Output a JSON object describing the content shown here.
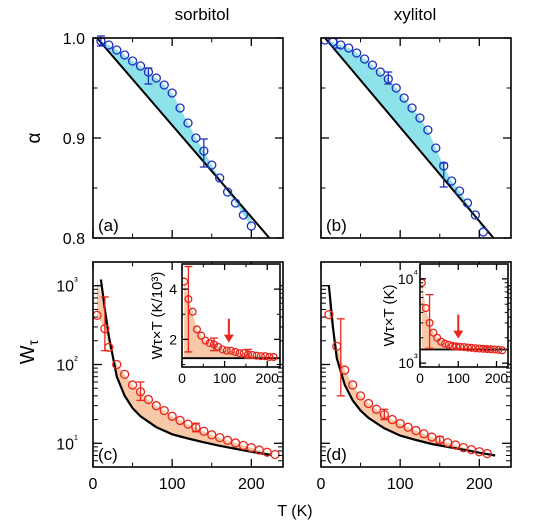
{
  "colors": {
    "open_circle_blue": "#1f2fbf",
    "open_circle_red": "#e8261c",
    "shade_alpha": "#8ee3ea",
    "shade_W": "#f7c9a8",
    "arrow": "#e8261c",
    "line": "#000000"
  },
  "chart_data": [
    {
      "id": "a",
      "type": "scatter",
      "title": "sorbitol",
      "panel_label": "(a)",
      "xlabel": "",
      "ylabel": "α",
      "xlim": [
        0,
        240
      ],
      "ylim": [
        0.8,
        1.0
      ],
      "yticks": [
        "0.8",
        "0.9",
        "1.0"
      ],
      "xticks": [],
      "grid": false,
      "series": [
        {
          "kind": "points",
          "color": "#1f2fbf",
          "x": [
            10,
            20,
            30,
            40,
            50,
            60,
            70,
            80,
            90,
            100,
            110,
            120,
            130,
            140,
            150,
            160,
            170,
            180,
            190,
            200
          ],
          "y": [
            0.997,
            0.993,
            0.988,
            0.983,
            0.977,
            0.972,
            0.966,
            0.96,
            0.953,
            0.945,
            0.93,
            0.915,
            0.9,
            0.887,
            0.873,
            0.86,
            0.846,
            0.835,
            0.823,
            0.812
          ],
          "errors": [
            {
              "x": 10,
              "y": 0.997,
              "err": 0.005
            },
            {
              "x": 70,
              "y": 0.962,
              "err": 0.008
            },
            {
              "x": 140,
              "y": 0.885,
              "err": 0.014
            }
          ]
        },
        {
          "kind": "line",
          "color": "#000000",
          "x": [
            5,
            225
          ],
          "y": [
            1.0,
            0.798
          ]
        }
      ]
    },
    {
      "id": "b",
      "type": "scatter",
      "title": "xylitol",
      "panel_label": "(b)",
      "xlabel": "",
      "ylabel": "",
      "xlim": [
        0,
        240
      ],
      "ylim": [
        0.8,
        1.0
      ],
      "yticks": [],
      "xticks": [],
      "grid": false,
      "series": [
        {
          "kind": "points",
          "color": "#1f2fbf",
          "x": [
            5,
            15,
            25,
            35,
            45,
            55,
            65,
            75,
            85,
            95,
            105,
            115,
            125,
            135,
            145,
            155,
            165,
            175,
            185,
            195,
            205
          ],
          "y": [
            0.998,
            0.996,
            0.993,
            0.99,
            0.985,
            0.979,
            0.973,
            0.966,
            0.959,
            0.95,
            0.94,
            0.93,
            0.92,
            0.908,
            0.89,
            0.872,
            0.857,
            0.847,
            0.835,
            0.823,
            0.806
          ],
          "errors": [
            {
              "x": 20,
              "y": 0.995,
              "err": 0.005
            },
            {
              "x": 85,
              "y": 0.96,
              "err": 0.006
            },
            {
              "x": 155,
              "y": 0.863,
              "err": 0.012
            }
          ]
        },
        {
          "kind": "line",
          "color": "#000000",
          "x": [
            5,
            220
          ],
          "y": [
            1.0,
            0.798
          ]
        }
      ]
    },
    {
      "id": "c",
      "type": "scatter",
      "title": "",
      "panel_label": "(c)",
      "xlabel": "",
      "ylabel": "Wτ",
      "xlim": [
        0,
        240
      ],
      "ylim": [
        5,
        2000
      ],
      "yscale": "log",
      "yticks": [
        "10¹",
        "10²",
        "10³"
      ],
      "xticks": [
        "0",
        "100",
        "200"
      ],
      "grid": false,
      "series": [
        {
          "kind": "points",
          "color": "#e8261c",
          "x": [
            5,
            15,
            20,
            30,
            40,
            50,
            60,
            70,
            80,
            90,
            100,
            110,
            120,
            130,
            140,
            150,
            160,
            170,
            180,
            190,
            200,
            210,
            220,
            230
          ],
          "y": [
            420,
            285,
            165,
            100,
            75,
            55,
            45,
            36,
            30,
            26,
            22,
            19.5,
            17.5,
            15.8,
            14.2,
            12.8,
            11.8,
            10.9,
            10.1,
            9.4,
            8.8,
            8.2,
            7.7,
            7.2
          ],
          "errors": [
            {
              "x": 15,
              "y": 300,
              "lo": 150,
              "hi": 720
            },
            {
              "x": 60,
              "y": 45,
              "lo": 35,
              "hi": 60
            },
            {
              "x": 130,
              "y": 15.8,
              "lo": 14,
              "hi": 18
            }
          ]
        },
        {
          "kind": "line",
          "color": "#000000",
          "x": [
            10,
            15,
            20,
            30,
            40,
            50,
            60,
            80,
            100,
            120,
            140,
            160,
            180,
            200,
            225
          ],
          "y": [
            1200,
            500,
            230,
            70,
            40,
            28,
            22,
            16,
            13,
            11.5,
            10.3,
            9.3,
            8.5,
            7.8,
            7.1
          ]
        }
      ],
      "inset": {
        "ylabel": "Wτ×T (K/10³)",
        "xlim": [
          0,
          230
        ],
        "ylim": [
          0.9,
          5.0
        ],
        "yticks": [
          "2",
          "4"
        ],
        "xticks": [
          "0",
          "100",
          "200"
        ],
        "arrow_x": 110,
        "points": {
          "x": [
            5,
            15,
            25,
            35,
            45,
            55,
            65,
            75,
            85,
            95,
            105,
            115,
            125,
            135,
            145,
            155,
            165,
            175,
            185,
            195,
            205,
            215
          ],
          "y": [
            4.3,
            3.6,
            3.1,
            2.4,
            2.15,
            1.95,
            1.85,
            1.8,
            1.7,
            1.6,
            1.55,
            1.55,
            1.5,
            1.45,
            1.45,
            1.4,
            1.38,
            1.35,
            1.33,
            1.33,
            1.3,
            1.3
          ],
          "errors": [
            {
              "x": 15,
              "y": 3.2,
              "lo": 1.5,
              "hi": 4.9
            },
            {
              "x": 75,
              "y": 1.8,
              "lo": 1.55,
              "hi": 2.05
            },
            {
              "x": 155,
              "y": 1.4,
              "lo": 1.25,
              "hi": 1.6
            }
          ]
        },
        "line": {
          "x": [
            0,
            230
          ],
          "y": [
            1.25,
            1.25
          ]
        }
      }
    },
    {
      "id": "d",
      "type": "scatter",
      "title": "",
      "panel_label": "(d)",
      "xlabel": "",
      "ylabel": "",
      "xlim": [
        0,
        240
      ],
      "ylim": [
        5,
        2000
      ],
      "yscale": "log",
      "yticks": [],
      "xticks": [
        "0",
        "100",
        "200"
      ],
      "grid": false,
      "series": [
        {
          "kind": "points",
          "color": "#e8261c",
          "x": [
            10,
            20,
            30,
            40,
            50,
            60,
            70,
            80,
            90,
            100,
            110,
            120,
            130,
            140,
            150,
            160,
            170,
            180,
            190,
            200,
            210
          ],
          "y": [
            430,
            170,
            85,
            55,
            40,
            32,
            27,
            23,
            20,
            17.8,
            16,
            14.5,
            13.2,
            12,
            11,
            10.2,
            9.5,
            8.8,
            8.3,
            7.8,
            7.4
          ],
          "errors": [
            {
              "x": 25,
              "y": 120,
              "lo": 40,
              "hi": 380
            },
            {
              "x": 80,
              "y": 23,
              "lo": 20,
              "hi": 27
            },
            {
              "x": 150,
              "y": 11,
              "lo": 10,
              "hi": 12.2
            }
          ]
        },
        {
          "kind": "line",
          "color": "#000000",
          "x": [
            10,
            15,
            20,
            30,
            40,
            50,
            60,
            80,
            100,
            120,
            140,
            160,
            180,
            200,
            220
          ],
          "y": [
            1000,
            300,
            120,
            55,
            35,
            26,
            21,
            15.5,
            12.5,
            11,
            9.8,
            9,
            8.3,
            7.6,
            7.0
          ]
        }
      ],
      "inset": {
        "ylabel": "Wτ×T (K)",
        "xlim": [
          0,
          230
        ],
        "ylim": [
          900,
          15000
        ],
        "yscale": "log",
        "yticks": [
          "10³",
          "10⁴"
        ],
        "xticks": [
          "0",
          "100",
          "200"
        ],
        "arrow_x": 100,
        "points": {
          "x": [
            5,
            15,
            25,
            35,
            45,
            55,
            65,
            75,
            85,
            95,
            105,
            115,
            125,
            135,
            145,
            155,
            165,
            175,
            185,
            195,
            205,
            215
          ],
          "y": [
            9000,
            4500,
            3000,
            2300,
            2000,
            1800,
            1700,
            1650,
            1600,
            1580,
            1560,
            1550,
            1530,
            1520,
            1500,
            1490,
            1480,
            1470,
            1460,
            1450,
            1440,
            1420
          ],
          "errors": [
            {
              "x": 25,
              "y": 2800,
              "lo": 1500,
              "hi": 6500
            },
            {
              "x": 95,
              "y": 1580,
              "lo": 1480,
              "hi": 1700
            },
            {
              "x": 175,
              "y": 1470,
              "lo": 1400,
              "hi": 1550
            }
          ]
        },
        "line": {
          "x": [
            0,
            230
          ],
          "y": [
            1450,
            1450
          ]
        }
      }
    }
  ],
  "shared_xlabel": "T (K)"
}
